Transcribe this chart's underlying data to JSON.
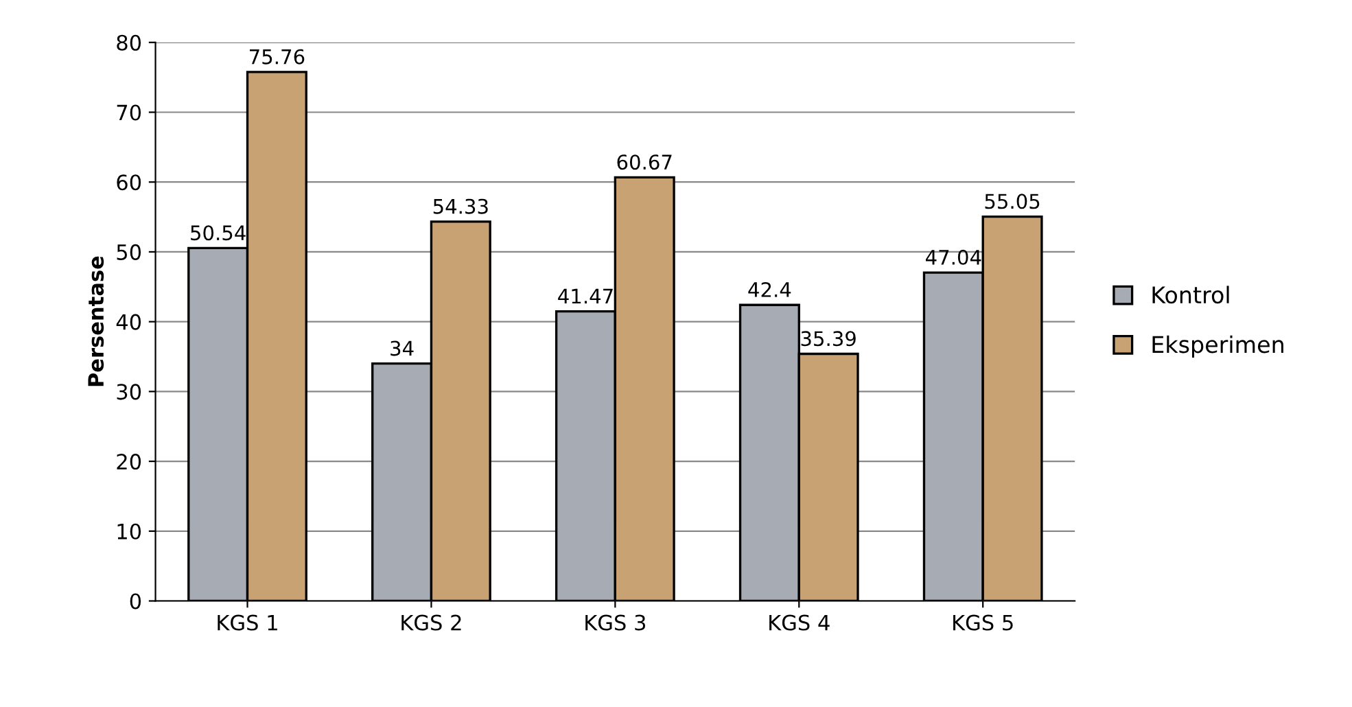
{
  "chart_data": {
    "type": "bar",
    "ylabel": "Persentase",
    "categories": [
      "KGS 1",
      "KGS 2",
      "KGS 3",
      "KGS 4",
      "KGS 5"
    ],
    "series": [
      {
        "name": "Kontrol",
        "color": "#a7abb3",
        "values": [
          50.54,
          34,
          41.47,
          42.4,
          47.04
        ]
      },
      {
        "name": "Eksperimen",
        "color": "#c9a273",
        "values": [
          75.76,
          54.33,
          60.67,
          35.39,
          55.05
        ]
      }
    ],
    "ylim": [
      0,
      80
    ],
    "yticks": [
      0,
      10,
      20,
      30,
      40,
      50,
      60,
      70,
      80
    ],
    "grid": "y",
    "legend": "right",
    "data_labels": true
  }
}
